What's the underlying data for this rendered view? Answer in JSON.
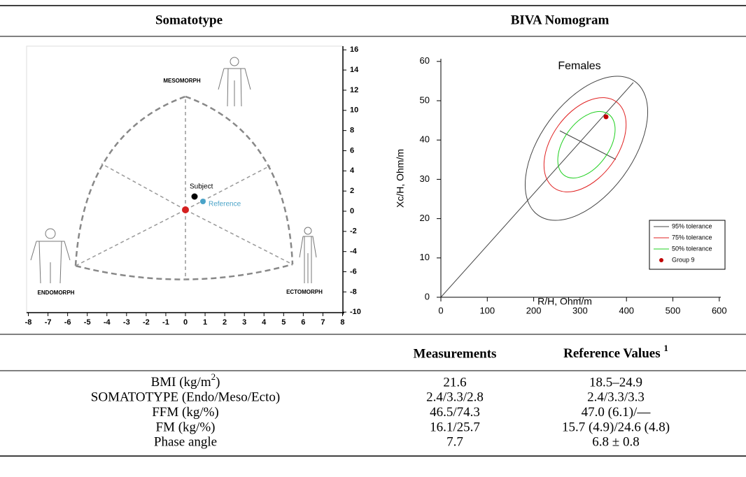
{
  "header": {
    "col1": "Somatotype",
    "col2": "BIVA Nomogram"
  },
  "somatochart": {
    "y_ticks": [
      16,
      14,
      12,
      10,
      8,
      6,
      4,
      2,
      0,
      -2,
      -4,
      -6,
      -8,
      -10
    ],
    "x_ticks": [
      -8,
      -7,
      -6,
      -5,
      -4,
      -3,
      -2,
      -1,
      0,
      1,
      2,
      3,
      4,
      5,
      6,
      7,
      8
    ],
    "labels": {
      "mesomorph": "MESOMORPH",
      "endomorph": "ENDOMORPH",
      "ectomorph": "ECTOMORPH",
      "subject": "Subject",
      "reference": "Reference"
    }
  },
  "nomogram": {
    "title": "Females",
    "y_label": "Xc/H, Ohm/m",
    "x_label": "R/H, Ohm/m",
    "y_ticks": [
      0,
      10,
      20,
      30,
      40,
      50,
      60
    ],
    "x_ticks": [
      0,
      100,
      200,
      300,
      400,
      500,
      600
    ],
    "legend": [
      "95% tolerance",
      "75% tolerance",
      "50% tolerance",
      "Group 9"
    ]
  },
  "table": {
    "headers": [
      "Measurements",
      {
        "text": "Reference Values ",
        "sup": "1"
      }
    ],
    "rows": [
      [
        {
          "text": "BMI (kg/m",
          "sup": "2",
          "tail": ")"
        },
        "21.6",
        "18.5–24.9"
      ],
      [
        "SOMATOTYPE (Endo/Meso/Ecto)",
        "2.4/3.3/2.8",
        "2.4/3.3/3.3"
      ],
      [
        "FFM (kg/%)",
        "46.5/74.3",
        "47.0 (6.1)/—"
      ],
      [
        "FM (kg/%)",
        "16.1/25.7",
        "15.7 (4.9)/24.6 (4.8)"
      ],
      [
        "Phase angle",
        "7.7",
        "6.8 ± 0.8"
      ]
    ]
  }
}
